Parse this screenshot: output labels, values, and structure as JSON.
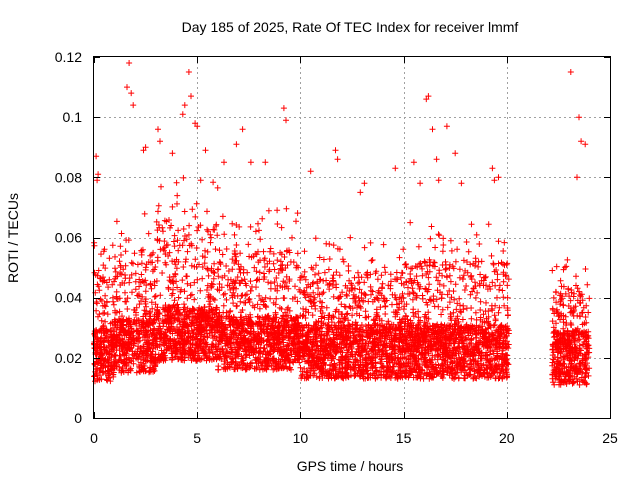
{
  "chart_data": {
    "type": "scatter",
    "title": "Day 185 of 2025, Rate Of TEC Index for receiver lmmf",
    "xlabel": "GPS time / hours",
    "ylabel": "ROTI / TECUs",
    "xlim": [
      0,
      25
    ],
    "ylim": [
      0,
      0.12
    ],
    "xticks": [
      0,
      5,
      10,
      15,
      20,
      25
    ],
    "yticks": [
      0,
      0.02,
      0.04,
      0.06,
      0.08,
      0.1,
      0.12
    ],
    "xtick_labels": [
      "0",
      "5",
      "10",
      "15",
      "20",
      "25"
    ],
    "ytick_labels": [
      "0",
      "0.02",
      "0.04",
      "0.06",
      "0.08",
      "0.1",
      "0.12"
    ],
    "grid": true,
    "marker": "+",
    "series_color": "#ff0000",
    "data_gap_hours": [
      20.1,
      22.2
    ],
    "density_profile": [
      {
        "t_start": 0.0,
        "t_end": 1.0,
        "typical": 0.021,
        "upper": 0.06
      },
      {
        "t_start": 1.0,
        "t_end": 3.0,
        "typical": 0.024,
        "upper": 0.07
      },
      {
        "t_start": 3.0,
        "t_end": 6.0,
        "typical": 0.028,
        "upper": 0.08
      },
      {
        "t_start": 6.0,
        "t_end": 10.0,
        "typical": 0.025,
        "upper": 0.07
      },
      {
        "t_start": 10.0,
        "t_end": 15.0,
        "typical": 0.022,
        "upper": 0.06
      },
      {
        "t_start": 15.0,
        "t_end": 20.1,
        "typical": 0.022,
        "upper": 0.065
      },
      {
        "t_start": 22.2,
        "t_end": 24.0,
        "typical": 0.02,
        "upper": 0.055
      }
    ],
    "points": [
      [
        1.7,
        0.118
      ],
      [
        1.6,
        0.11
      ],
      [
        1.8,
        0.108
      ],
      [
        1.9,
        0.104
      ],
      [
        4.6,
        0.115
      ],
      [
        4.7,
        0.107
      ],
      [
        4.4,
        0.104
      ],
      [
        4.3,
        0.101
      ],
      [
        4.9,
        0.098
      ],
      [
        5.0,
        0.097
      ],
      [
        3.1,
        0.096
      ],
      [
        3.2,
        0.092
      ],
      [
        2.4,
        0.089
      ],
      [
        2.5,
        0.09
      ],
      [
        7.2,
        0.096
      ],
      [
        6.9,
        0.091
      ],
      [
        9.2,
        0.103
      ],
      [
        9.3,
        0.099
      ],
      [
        11.7,
        0.089
      ],
      [
        11.8,
        0.086
      ],
      [
        13.1,
        0.078
      ],
      [
        14.6,
        0.083
      ],
      [
        15.5,
        0.085
      ],
      [
        15.8,
        0.078
      ],
      [
        16.2,
        0.107
      ],
      [
        16.1,
        0.106
      ],
      [
        16.4,
        0.096
      ],
      [
        16.6,
        0.086
      ],
      [
        17.1,
        0.097
      ],
      [
        17.5,
        0.088
      ],
      [
        17.8,
        0.078
      ],
      [
        16.7,
        0.079
      ],
      [
        19.3,
        0.083
      ],
      [
        19.4,
        0.079
      ],
      [
        19.6,
        0.08
      ],
      [
        23.1,
        0.115
      ],
      [
        23.5,
        0.1
      ],
      [
        23.6,
        0.092
      ],
      [
        23.8,
        0.091
      ],
      [
        23.4,
        0.08
      ],
      [
        0.1,
        0.087
      ],
      [
        0.2,
        0.081
      ],
      [
        0.15,
        0.079
      ],
      [
        6.3,
        0.085
      ],
      [
        7.6,
        0.085
      ],
      [
        8.3,
        0.085
      ],
      [
        10.5,
        0.082
      ],
      [
        12.9,
        0.075
      ],
      [
        3.8,
        0.088
      ],
      [
        5.4,
        0.089
      ]
    ]
  }
}
